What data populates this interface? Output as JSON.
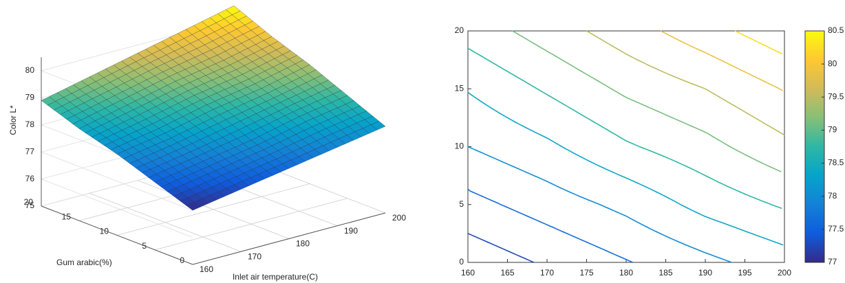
{
  "chart_data": [
    {
      "type": "surface",
      "zlabel": "Color L*",
      "ylabel": "Gum arabic(%)",
      "xlabel": "Inlet air temperature(C)",
      "x": [
        160,
        170,
        180,
        190,
        200
      ],
      "y": [
        0,
        5,
        10,
        15,
        20
      ],
      "z": [
        [
          77,
          77.3,
          77.6,
          77.9,
          78.2
        ],
        [
          77.5,
          77.8,
          78.1,
          78.5,
          78.8
        ],
        [
          78.0,
          78.3,
          78.7,
          79.0,
          79.4
        ],
        [
          78.4,
          78.8,
          79.2,
          79.5,
          79.9
        ],
        [
          78.9,
          79.3,
          79.7,
          80.1,
          80.5
        ]
      ],
      "xlim": [
        160,
        200
      ],
      "ylim": [
        0,
        20
      ],
      "zlim": [
        75,
        80.5
      ],
      "xticks": [
        160,
        170,
        180,
        190,
        200
      ],
      "yticks": [
        0,
        5,
        10,
        15,
        20
      ],
      "zticks": [
        75,
        76,
        77,
        78,
        79,
        80
      ],
      "clim": [
        77,
        80.5
      ],
      "colormap": [
        "#352a87",
        "#0f5cdd",
        "#1481d6",
        "#06a4ca",
        "#2eb7a4",
        "#87bf77",
        "#d1bb59",
        "#fec832",
        "#f9fb0e"
      ],
      "grid": true
    },
    {
      "type": "contour",
      "x": [
        160,
        170,
        180,
        190,
        200
      ],
      "y": [
        0,
        5,
        10,
        15,
        20
      ],
      "z": [
        [
          77,
          77.3,
          77.6,
          77.9,
          78.2
        ],
        [
          77.5,
          77.8,
          78.1,
          78.5,
          78.8
        ],
        [
          78.0,
          78.3,
          78.7,
          79.0,
          79.4
        ],
        [
          78.4,
          78.8,
          79.2,
          79.5,
          79.9
        ],
        [
          78.9,
          79.3,
          79.7,
          80.1,
          80.5
        ]
      ],
      "levels": [
        77.25,
        77.625,
        78,
        78.375,
        78.75,
        79.125,
        79.5,
        79.875,
        80.25
      ],
      "xlim": [
        160,
        200
      ],
      "ylim": [
        0,
        20
      ],
      "xticks": [
        160,
        165,
        170,
        175,
        180,
        185,
        190,
        195,
        200
      ],
      "yticks": [
        0,
        5,
        10,
        15,
        20
      ],
      "clim": [
        77,
        80.5
      ],
      "cticks": [
        77,
        77.5,
        78,
        78.5,
        79,
        79.5,
        80,
        80.5
      ],
      "colormap": [
        "#352a87",
        "#0f5cdd",
        "#1481d6",
        "#06a4ca",
        "#2eb7a4",
        "#87bf77",
        "#d1bb59",
        "#fec832",
        "#f9fb0e"
      ]
    }
  ]
}
